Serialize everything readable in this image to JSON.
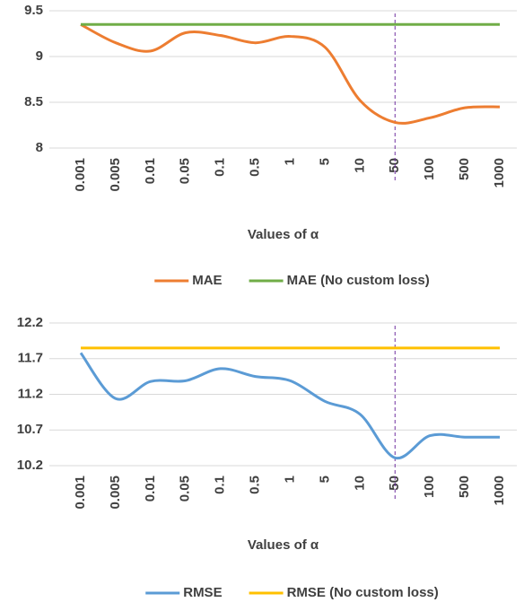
{
  "chart_data": [
    {
      "type": "line",
      "x_label": "Values of α",
      "categories": [
        "0.001",
        "0.005",
        "0.01",
        "0.05",
        "0.1",
        "0.5",
        "1",
        "5",
        "10",
        "50",
        "100",
        "500",
        "1000"
      ],
      "series": [
        {
          "name": "MAE",
          "color": "#ed7d31",
          "values": [
            9.35,
            9.15,
            9.06,
            9.26,
            9.23,
            9.15,
            9.22,
            9.1,
            8.52,
            8.28,
            8.33,
            8.44,
            8.45
          ]
        },
        {
          "name": "MAE (No custom loss)",
          "color": "#70ad47",
          "values": [
            9.35,
            9.35,
            9.35,
            9.35,
            9.35,
            9.35,
            9.35,
            9.35,
            9.35,
            9.35,
            9.35,
            9.35,
            9.35
          ]
        }
      ],
      "ylim": [
        8,
        9.5
      ],
      "yticks": [
        8,
        8.5,
        9,
        9.5
      ],
      "grid": true,
      "legend": "bottom"
    },
    {
      "type": "line",
      "x_label": "Values of α",
      "categories": [
        "0.001",
        "0.005",
        "0.01",
        "0.05",
        "0.1",
        "0.5",
        "1",
        "5",
        "10",
        "50",
        "100",
        "500",
        "1000"
      ],
      "series": [
        {
          "name": "RMSE",
          "color": "#5b9bd5",
          "values": [
            11.78,
            11.14,
            11.38,
            11.39,
            11.56,
            11.45,
            11.39,
            11.1,
            10.92,
            10.31,
            10.62,
            10.6,
            10.6
          ]
        },
        {
          "name": "RMSE (No custom loss)",
          "color": "#ffc000",
          "values": [
            11.85,
            11.85,
            11.85,
            11.85,
            11.85,
            11.85,
            11.85,
            11.85,
            11.85,
            11.85,
            11.85,
            11.85,
            11.85
          ]
        }
      ],
      "ylim": [
        10.2,
        12.2
      ],
      "yticks": [
        10.2,
        10.7,
        11.2,
        11.7,
        12.2
      ],
      "grid": true,
      "legend": "bottom"
    }
  ]
}
